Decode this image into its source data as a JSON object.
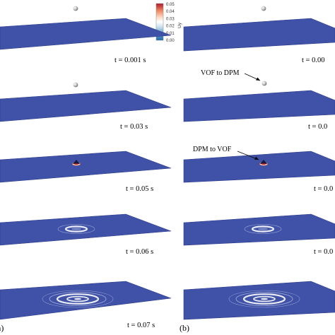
{
  "colorbar": {
    "title": "Uy",
    "ticks": [
      "0.05",
      "0.04",
      "0.03",
      "0.02",
      "0.01",
      "0.00"
    ],
    "colors": [
      "#b2182b",
      "#ef8a62",
      "#fddbc7",
      "#ffffff",
      "#d1e5f0",
      "#67a9cf",
      "#2166ac"
    ]
  },
  "panels": [
    {
      "label": "a)",
      "frames": [
        {
          "time": "t = 0.001 s",
          "feature": "droplet"
        },
        {
          "time": "t = 0.03 s",
          "feature": "droplet-low"
        },
        {
          "time": "t = 0.05 s",
          "feature": "impact"
        },
        {
          "time": "t = 0.06 s",
          "feature": "ring"
        },
        {
          "time": "t = 0.07 s",
          "feature": "rings"
        }
      ]
    },
    {
      "label": "(b)",
      "frames": [
        {
          "time": "t = 0.00",
          "feature": "droplet"
        },
        {
          "time": "t = 0.0",
          "feature": "droplet-low",
          "annotation": "VOF to DPM"
        },
        {
          "time": "t = 0.0",
          "feature": "impact",
          "annotation": "DPM to VOF"
        },
        {
          "time": "t = 0.0",
          "feature": "ring"
        },
        {
          "time": "",
          "feature": "rings"
        }
      ]
    }
  ],
  "colors": {
    "plate": "#4052a8",
    "plate_edge": "#2e3c8a",
    "ring": "#d9deea",
    "droplet": "#c8c8c8"
  }
}
